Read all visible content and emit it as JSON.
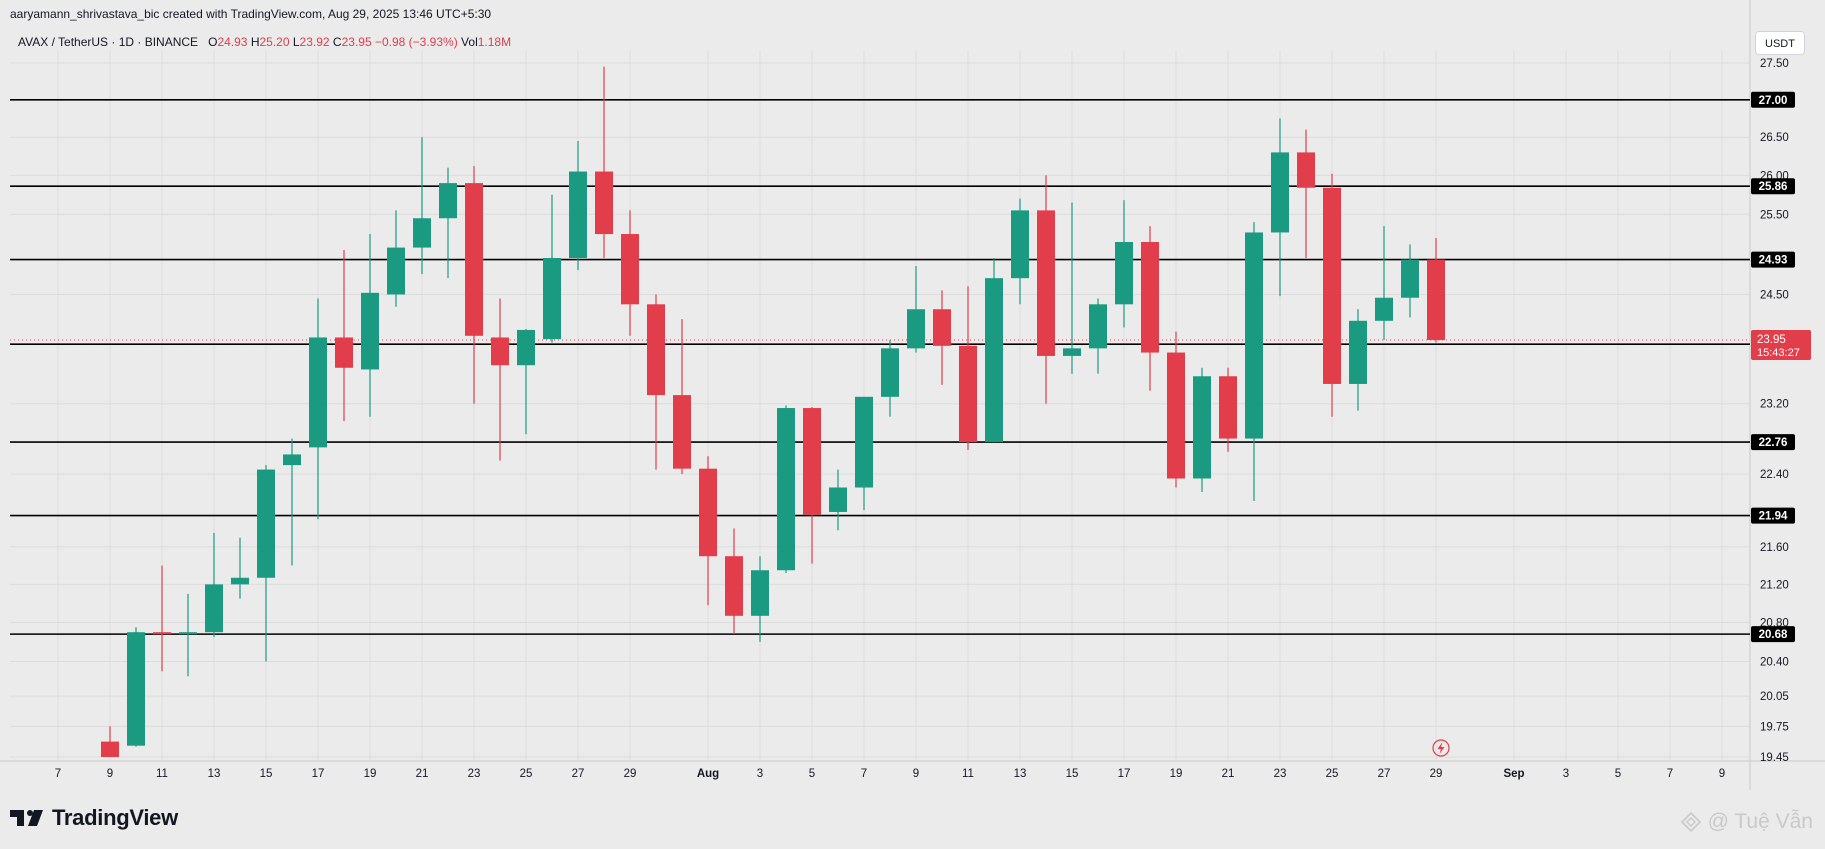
{
  "header": {
    "created_by": "aaryamann_shrivastava_bic created with TradingView.com, Aug 29, 2025 13:46 UTC+5:30",
    "symbol": "AVAX / TetherUS · 1D · BINANCE",
    "ohlc": {
      "o_label": "O",
      "o_value": "24.93",
      "h_label": "H",
      "h_value": "25.20",
      "l_label": "L",
      "l_value": "23.92",
      "c_label": "C",
      "c_value": "23.95",
      "change": "−0.98 (−3.93%)",
      "vol_label": "Vol",
      "vol_value": "1.18M"
    },
    "currency": "USDT"
  },
  "price_badge": {
    "price": "23.95",
    "countdown": "15:43:27"
  },
  "footer": {
    "logo_text": "TradingView",
    "watermark": "@ Tuệ Vẫn"
  },
  "colors": {
    "up": "#1a9a81",
    "down": "#e23d4a",
    "level_line": "#000000",
    "background": "#ebebeb",
    "grid": "#dcdcdc"
  },
  "icons": {
    "logo": "tradingview-logo-icon",
    "lightning": "lightning-icon",
    "watermark": "diamond-icon"
  },
  "chart_data": {
    "type": "candlestick",
    "title": "AVAX / TetherUS · 1D · BINANCE",
    "xlabel": "",
    "ylabel": "",
    "ylim": [
      19.45,
      27.6
    ],
    "y_scale": "log",
    "y_ticks": [
      "27.50",
      "26.50",
      "26.00",
      "25.50",
      "24.50",
      "23.20",
      "22.40",
      "21.60",
      "21.20",
      "20.80",
      "20.40",
      "20.05",
      "19.75",
      "19.45"
    ],
    "x_tick_labels": [
      "7",
      "9",
      "11",
      "13",
      "15",
      "17",
      "19",
      "21",
      "23",
      "25",
      "27",
      "29",
      "Aug",
      "3",
      "5",
      "7",
      "9",
      "11",
      "13",
      "15",
      "17",
      "19",
      "21",
      "23",
      "25",
      "27",
      "29",
      "Sep",
      "3",
      "5",
      "7",
      "9"
    ],
    "candles": [
      {
        "date": "2025-07-09",
        "open": 19.6,
        "high": 19.75,
        "low": 19.45,
        "close": 19.45
      },
      {
        "date": "2025-07-10",
        "open": 19.56,
        "high": 20.75,
        "low": 19.55,
        "close": 20.7
      },
      {
        "date": "2025-07-11",
        "open": 20.7,
        "high": 21.4,
        "low": 20.3,
        "close": 20.68
      },
      {
        "date": "2025-07-12",
        "open": 20.68,
        "high": 21.1,
        "low": 20.25,
        "close": 20.7
      },
      {
        "date": "2025-07-13",
        "open": 20.7,
        "high": 21.75,
        "low": 20.65,
        "close": 21.2
      },
      {
        "date": "2025-07-14",
        "open": 21.2,
        "high": 21.7,
        "low": 21.05,
        "close": 21.27
      },
      {
        "date": "2025-07-15",
        "open": 21.27,
        "high": 22.5,
        "low": 20.4,
        "close": 22.45
      },
      {
        "date": "2025-07-16",
        "open": 22.5,
        "high": 22.8,
        "low": 21.4,
        "close": 22.62
      },
      {
        "date": "2025-07-17",
        "open": 22.7,
        "high": 24.45,
        "low": 21.9,
        "close": 23.98
      },
      {
        "date": "2025-07-18",
        "open": 23.98,
        "high": 25.05,
        "low": 23.0,
        "close": 23.62
      },
      {
        "date": "2025-07-19",
        "open": 23.6,
        "high": 25.25,
        "low": 23.05,
        "close": 24.52
      },
      {
        "date": "2025-07-20",
        "open": 24.5,
        "high": 25.55,
        "low": 24.35,
        "close": 25.08
      },
      {
        "date": "2025-07-21",
        "open": 25.08,
        "high": 26.5,
        "low": 24.75,
        "close": 25.45
      },
      {
        "date": "2025-07-22",
        "open": 25.45,
        "high": 26.1,
        "low": 24.7,
        "close": 25.9
      },
      {
        "date": "2025-07-23",
        "open": 25.9,
        "high": 26.12,
        "low": 23.2,
        "close": 24.0
      },
      {
        "date": "2025-07-24",
        "open": 23.98,
        "high": 24.45,
        "low": 22.55,
        "close": 23.65
      },
      {
        "date": "2025-07-25",
        "open": 23.65,
        "high": 24.08,
        "low": 22.85,
        "close": 24.07
      },
      {
        "date": "2025-07-26",
        "open": 23.96,
        "high": 25.75,
        "low": 23.92,
        "close": 24.95
      },
      {
        "date": "2025-07-27",
        "open": 24.95,
        "high": 26.45,
        "low": 24.8,
        "close": 26.05
      },
      {
        "date": "2025-07-28",
        "open": 26.05,
        "high": 27.45,
        "low": 24.95,
        "close": 25.25
      },
      {
        "date": "2025-07-29",
        "open": 25.25,
        "high": 25.55,
        "low": 24.0,
        "close": 24.38
      },
      {
        "date": "2025-07-30",
        "open": 24.38,
        "high": 24.5,
        "low": 22.45,
        "close": 23.3
      },
      {
        "date": "2025-07-31",
        "open": 23.3,
        "high": 24.2,
        "low": 22.4,
        "close": 22.46
      },
      {
        "date": "2025-08-01",
        "open": 22.46,
        "high": 22.6,
        "low": 20.98,
        "close": 21.5
      },
      {
        "date": "2025-08-02",
        "open": 21.5,
        "high": 21.8,
        "low": 20.68,
        "close": 20.87
      },
      {
        "date": "2025-08-03",
        "open": 20.87,
        "high": 21.5,
        "low": 20.6,
        "close": 21.35
      },
      {
        "date": "2025-08-04",
        "open": 21.35,
        "high": 23.18,
        "low": 21.32,
        "close": 23.15
      },
      {
        "date": "2025-08-05",
        "open": 23.15,
        "high": 23.16,
        "low": 21.42,
        "close": 21.95
      },
      {
        "date": "2025-08-06",
        "open": 21.98,
        "high": 22.45,
        "low": 21.78,
        "close": 22.25
      },
      {
        "date": "2025-08-07",
        "open": 22.25,
        "high": 23.28,
        "low": 22.0,
        "close": 23.28
      },
      {
        "date": "2025-08-08",
        "open": 23.28,
        "high": 23.95,
        "low": 23.05,
        "close": 23.85
      },
      {
        "date": "2025-08-09",
        "open": 23.85,
        "high": 24.85,
        "low": 23.8,
        "close": 24.32
      },
      {
        "date": "2025-08-10",
        "open": 24.32,
        "high": 24.55,
        "low": 23.42,
        "close": 23.88
      },
      {
        "date": "2025-08-11",
        "open": 23.88,
        "high": 24.6,
        "low": 22.67,
        "close": 22.76
      },
      {
        "date": "2025-08-12",
        "open": 22.76,
        "high": 24.95,
        "low": 22.76,
        "close": 24.7
      },
      {
        "date": "2025-08-13",
        "open": 24.7,
        "high": 25.7,
        "low": 24.38,
        "close": 25.55
      },
      {
        "date": "2025-08-14",
        "open": 25.55,
        "high": 26.0,
        "low": 23.2,
        "close": 23.76
      },
      {
        "date": "2025-08-15",
        "open": 23.76,
        "high": 25.65,
        "low": 23.55,
        "close": 23.85
      },
      {
        "date": "2025-08-16",
        "open": 23.85,
        "high": 24.45,
        "low": 23.55,
        "close": 24.38
      },
      {
        "date": "2025-08-17",
        "open": 24.38,
        "high": 25.68,
        "low": 24.1,
        "close": 25.15
      },
      {
        "date": "2025-08-18",
        "open": 25.15,
        "high": 25.35,
        "low": 23.35,
        "close": 23.8
      },
      {
        "date": "2025-08-19",
        "open": 23.8,
        "high": 24.05,
        "low": 22.25,
        "close": 22.35
      },
      {
        "date": "2025-08-20",
        "open": 22.35,
        "high": 23.62,
        "low": 22.2,
        "close": 23.52
      },
      {
        "date": "2025-08-21",
        "open": 23.52,
        "high": 23.62,
        "low": 22.65,
        "close": 22.8
      },
      {
        "date": "2025-08-22",
        "open": 22.8,
        "high": 25.4,
        "low": 22.1,
        "close": 25.27
      },
      {
        "date": "2025-08-23",
        "open": 25.27,
        "high": 26.75,
        "low": 24.48,
        "close": 26.3
      },
      {
        "date": "2025-08-24",
        "open": 26.3,
        "high": 26.6,
        "low": 24.95,
        "close": 25.84
      },
      {
        "date": "2025-08-25",
        "open": 25.84,
        "high": 26.02,
        "low": 23.05,
        "close": 23.43
      },
      {
        "date": "2025-08-26",
        "open": 23.43,
        "high": 24.32,
        "low": 23.12,
        "close": 24.18
      },
      {
        "date": "2025-08-27",
        "open": 24.18,
        "high": 25.35,
        "low": 23.95,
        "close": 24.46
      },
      {
        "date": "2025-08-28",
        "open": 24.46,
        "high": 25.12,
        "low": 24.22,
        "close": 24.93
      },
      {
        "date": "2025-08-29",
        "open": 24.93,
        "high": 25.2,
        "low": 23.92,
        "close": 23.95
      }
    ],
    "levels": [
      {
        "price": 27.0,
        "label": "27.00"
      },
      {
        "price": 25.86,
        "label": "25.86"
      },
      {
        "price": 24.93,
        "label": "24.93"
      },
      {
        "price": 23.9,
        "label": "23.90"
      },
      {
        "price": 22.76,
        "label": "22.76"
      },
      {
        "price": 21.94,
        "label": "21.94"
      },
      {
        "price": 20.68,
        "label": "20.68"
      }
    ],
    "current_price": 23.95,
    "grid": true,
    "legend": "none"
  }
}
